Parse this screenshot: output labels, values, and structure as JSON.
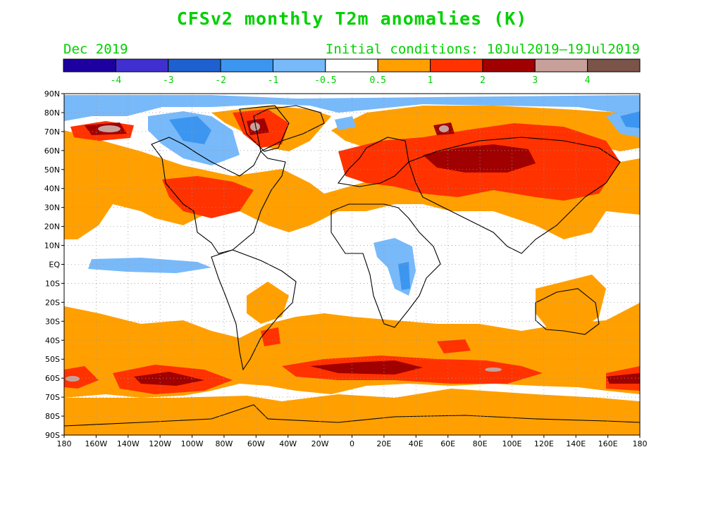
{
  "title": "CFSv2 monthly T2m anomalies (K)",
  "valid_month": "Dec 2019",
  "initial_conditions": "Initial conditions: 10Jul2019—19Jul2019",
  "colorbar": {
    "colors": [
      "#1e00a0",
      "#4030d0",
      "#1e60d0",
      "#3c96f0",
      "#78b9fa",
      "#ffffff",
      "#ffa000",
      "#ff3200",
      "#a00000",
      "#c8a09a",
      "#7a5448"
    ],
    "tick_labels": [
      "-4",
      "-3",
      "-2",
      "-1",
      "-0.5",
      "0.5",
      "1",
      "2",
      "3",
      "4"
    ]
  },
  "map": {
    "lat_labels": [
      "90N",
      "80N",
      "70N",
      "60N",
      "50N",
      "40N",
      "30N",
      "20N",
      "10N",
      "EQ",
      "10S",
      "20S",
      "30S",
      "40S",
      "50S",
      "60S",
      "70S",
      "80S",
      "90S"
    ],
    "lon_labels": [
      "180",
      "160W",
      "140W",
      "120W",
      "100W",
      "80W",
      "60W",
      "40W",
      "20W",
      "0",
      "20E",
      "40E",
      "60E",
      "80E",
      "100E",
      "120E",
      "140E",
      "160E",
      "180"
    ],
    "projection": "cylindrical equidistant",
    "grid": "dotted every 10 degrees"
  }
}
